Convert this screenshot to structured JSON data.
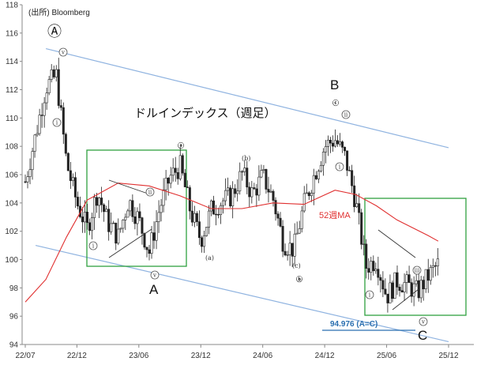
{
  "chart_data": {
    "type": "candlestick",
    "title": "ドルインデックス（週足）",
    "source": "(出所) Bloomberg",
    "y_range": [
      94,
      118
    ],
    "y_ticks": [
      "94",
      "96",
      "98",
      "100",
      "102",
      "104",
      "106",
      "108",
      "110",
      "112",
      "114",
      "116",
      "118"
    ],
    "x_tick_labels": [
      "22/07",
      "22/12",
      "23/06",
      "23/12",
      "24/06",
      "24/12",
      "25/06",
      "25/12"
    ],
    "x_range": [
      "2022-07",
      "2025-12"
    ],
    "grid": false,
    "ma_label": "52週MA",
    "target_label": "94.976 (A=C)",
    "target_value": 94.976,
    "wave_labels_big": [
      "Ⓐ",
      "A",
      "B",
      "C"
    ],
    "wave_labels_small": [
      "ⓐ",
      "ⓑ",
      "ⓒ",
      "(a)",
      "(b)",
      "(c)",
      "ⅰ",
      "ⅱ",
      "ⅲ",
      "ⅳ",
      "ⅴ"
    ],
    "weekly_close_path": [
      [
        "2022-07",
        105.5
      ],
      [
        "2022-08",
        108.8
      ],
      [
        "2022-09",
        112.2
      ],
      [
        "2022-10",
        113.0
      ],
      [
        "2022-11",
        106.8
      ],
      [
        "2022-12",
        104.0
      ],
      [
        "2023-01",
        102.2
      ],
      [
        "2023-02",
        104.8
      ],
      [
        "2023-03",
        102.6
      ],
      [
        "2023-04",
        101.6
      ],
      [
        "2023-05",
        104.2
      ],
      [
        "2023-06",
        102.8
      ],
      [
        "2023-07",
        100.5
      ],
      [
        "2023-08",
        103.6
      ],
      [
        "2023-09",
        105.8
      ],
      [
        "2023-10",
        106.6
      ],
      [
        "2023-11",
        103.4
      ],
      [
        "2023-12",
        101.4
      ],
      [
        "2024-01",
        103.5
      ],
      [
        "2024-02",
        104.1
      ],
      [
        "2024-03",
        104.5
      ],
      [
        "2024-04",
        106.1
      ],
      [
        "2024-05",
        104.6
      ],
      [
        "2024-06",
        105.9
      ],
      [
        "2024-07",
        104.3
      ],
      [
        "2024-08",
        101.2
      ],
      [
        "2024-09",
        100.7
      ],
      [
        "2024-10",
        103.9
      ],
      [
        "2024-11",
        106.0
      ],
      [
        "2024-12",
        108.0
      ],
      [
        "2025-01",
        108.5
      ],
      [
        "2025-02",
        107.2
      ],
      [
        "2025-03",
        104.1
      ],
      [
        "2025-04",
        99.5
      ],
      [
        "2025-05",
        100.0
      ],
      [
        "2025-06",
        97.4
      ],
      [
        "2025-07",
        98.5
      ],
      [
        "2025-08",
        98.2
      ],
      [
        "2025-09",
        97.7
      ],
      [
        "2025-10",
        98.8
      ],
      [
        "2025-11",
        99.7
      ]
    ],
    "ma52_path": [
      [
        "2022-07",
        97.0
      ],
      [
        "2022-09",
        98.6
      ],
      [
        "2022-11",
        101.6
      ],
      [
        "2023-01",
        104.2
      ],
      [
        "2023-04",
        105.4
      ],
      [
        "2023-07",
        105.2
      ],
      [
        "2023-10",
        104.5
      ],
      [
        "2024-01",
        103.6
      ],
      [
        "2024-04",
        103.6
      ],
      [
        "2024-07",
        104.0
      ],
      [
        "2024-10",
        103.9
      ],
      [
        "2025-01",
        104.9
      ],
      [
        "2025-03",
        104.6
      ],
      [
        "2025-05",
        103.8
      ],
      [
        "2025-07",
        102.8
      ],
      [
        "2025-10",
        101.7
      ],
      [
        "2025-11",
        101.3
      ]
    ],
    "channel_upper": [
      [
        "2022-09",
        114.9
      ],
      [
        "2025-12",
        107.9
      ]
    ],
    "channel_lower": [
      [
        "2022-08",
        101.0
      ],
      [
        "2025-12",
        94.2
      ]
    ],
    "series": [
      {
        "name": "52週MA",
        "color": "#e03030"
      }
    ]
  },
  "colors": {
    "candle": "#222222",
    "ma": "#e03030",
    "channel": "#8fb3e0",
    "box": "#30a040",
    "target": "#2a6fb0"
  }
}
